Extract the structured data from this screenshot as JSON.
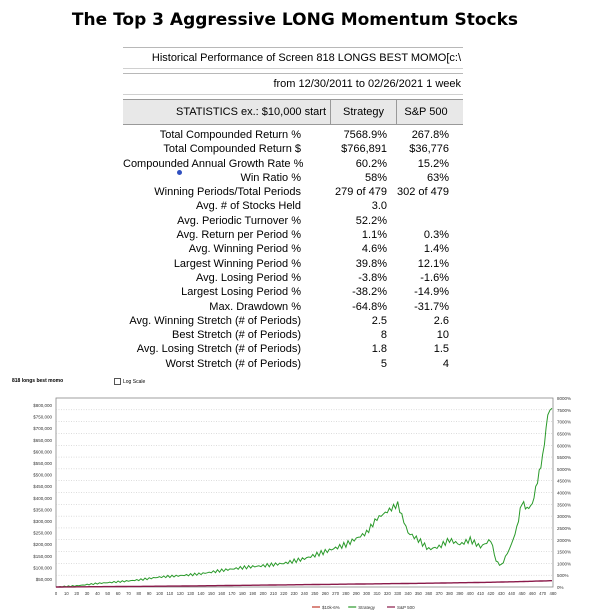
{
  "title": "The Top 3 Aggressive LONG Momentum Stocks",
  "report": {
    "header_line": "Historical Performance of Screen 818 LONGS BEST MOMO[c:\\",
    "date_line": "from 12/30/2011 to 02/26/2021 1 week",
    "columns": [
      "STATISTICS  ex.: $10,000 start",
      "Strategy",
      "S&P 500"
    ],
    "rows": [
      {
        "label": "Total Compounded Return %",
        "strategy": "7568.9%",
        "sp500": "267.8%"
      },
      {
        "label": "Total Compounded Return $",
        "strategy": "$766,891",
        "sp500": "$36,776"
      },
      {
        "label": "Compounded Annual Growth Rate %",
        "strategy": "60.2%",
        "sp500": "15.2%"
      },
      {
        "label": "Win Ratio %",
        "strategy": "58%",
        "sp500": "63%"
      },
      {
        "label": "Winning Periods/Total Periods",
        "strategy": "279 of 479",
        "sp500": "302 of 479"
      },
      {
        "label": "Avg. # of Stocks Held",
        "strategy": "3.0",
        "sp500": ""
      },
      {
        "label": "Avg. Periodic Turnover %",
        "strategy": "52.2%",
        "sp500": ""
      },
      {
        "label": "Avg. Return per Period %",
        "strategy": "1.1%",
        "sp500": "0.3%"
      },
      {
        "label": "Avg. Winning Period %",
        "strategy": "4.6%",
        "sp500": "1.4%"
      },
      {
        "label": "Largest Winning Period %",
        "strategy": "39.8%",
        "sp500": "12.1%"
      },
      {
        "label": "Avg. Losing Period %",
        "strategy": "-3.8%",
        "sp500": "-1.6%"
      },
      {
        "label": "Largest Losing Period %",
        "strategy": "-38.2%",
        "sp500": "-14.9%"
      },
      {
        "label": "Max. Drawdown %",
        "strategy": "-64.8%",
        "sp500": "-31.7%"
      },
      {
        "label": "Avg. Winning Stretch (# of Periods)",
        "strategy": "2.5",
        "sp500": "2.6"
      },
      {
        "label": "Best Stretch (# of Periods)",
        "strategy": "8",
        "sp500": "10"
      },
      {
        "label": "Avg. Losing Stretch (# of Periods)",
        "strategy": "1.8",
        "sp500": "1.5"
      },
      {
        "label": "Worst Stretch (# of Periods)",
        "strategy": "5",
        "sp500": "4"
      }
    ]
  },
  "chart_data": {
    "type": "line",
    "title": "818 longs best momo",
    "log_scale_label": "Log Scale",
    "log_scale_checked": false,
    "y_left_ticks": [
      "$800,000",
      "$750,000",
      "$700,000",
      "$650,000",
      "$600,000",
      "$550,000",
      "$500,000",
      "$450,000",
      "$400,000",
      "$350,000",
      "$300,000",
      "$250,000",
      "$200,000",
      "$150,000",
      "$100,000",
      "$50,000"
    ],
    "y_right_ticks": [
      "8000%",
      "7500%",
      "7000%",
      "6500%",
      "6000%",
      "5500%",
      "5000%",
      "4500%",
      "4000%",
      "3500%",
      "3000%",
      "2500%",
      "2000%",
      "1500%",
      "1000%",
      "500%",
      "0%"
    ],
    "x_ticks": [
      "0",
      "10",
      "20",
      "30",
      "40",
      "50",
      "60",
      "70",
      "80",
      "90",
      "100",
      "110",
      "120",
      "130",
      "140",
      "150",
      "160",
      "170",
      "180",
      "190",
      "200",
      "210",
      "220",
      "230",
      "240",
      "250",
      "260",
      "270",
      "280",
      "290",
      "300",
      "310",
      "320",
      "330",
      "340",
      "350",
      "360",
      "370",
      "380",
      "390",
      "400",
      "410",
      "420",
      "430",
      "440",
      "450",
      "460",
      "470",
      "480"
    ],
    "ylim": [
      0,
      8000
    ],
    "xlim": [
      0,
      480
    ],
    "legend_placement": "bottom",
    "series": [
      {
        "name": "Strategy",
        "color": "#2a9a2a",
        "x": [
          0,
          20,
          40,
          60,
          80,
          100,
          120,
          140,
          160,
          180,
          200,
          220,
          240,
          260,
          270,
          280,
          290,
          300,
          310,
          320,
          330,
          340,
          350,
          360,
          370,
          380,
          390,
          400,
          410,
          420,
          425,
          430,
          440,
          445,
          450,
          455,
          460,
          465,
          470,
          475,
          479
        ],
        "values": [
          0,
          50,
          150,
          220,
          300,
          420,
          480,
          560,
          700,
          820,
          900,
          1000,
          1200,
          1500,
          1650,
          1800,
          2050,
          2300,
          2900,
          3200,
          3500,
          2300,
          2000,
          1600,
          1700,
          2000,
          1800,
          2000,
          1700,
          2000,
          1100,
          900,
          1800,
          2500,
          3600,
          3300,
          3500,
          4500,
          5500,
          7300,
          7568.9
        ]
      },
      {
        "name": "S&P 500",
        "color": "#8a1a4a",
        "x": [
          0,
          60,
          120,
          180,
          240,
          300,
          360,
          420,
          450,
          479
        ],
        "values": [
          0,
          20,
          40,
          70,
          100,
          130,
          160,
          200,
          230,
          267.8
        ]
      }
    ],
    "legend_entries": [
      "$10k-6%",
      "Strategy",
      "S&P 500"
    ],
    "legend_colors": [
      "#c0392b",
      "#2a9a2a",
      "#8a1a4a"
    ]
  }
}
